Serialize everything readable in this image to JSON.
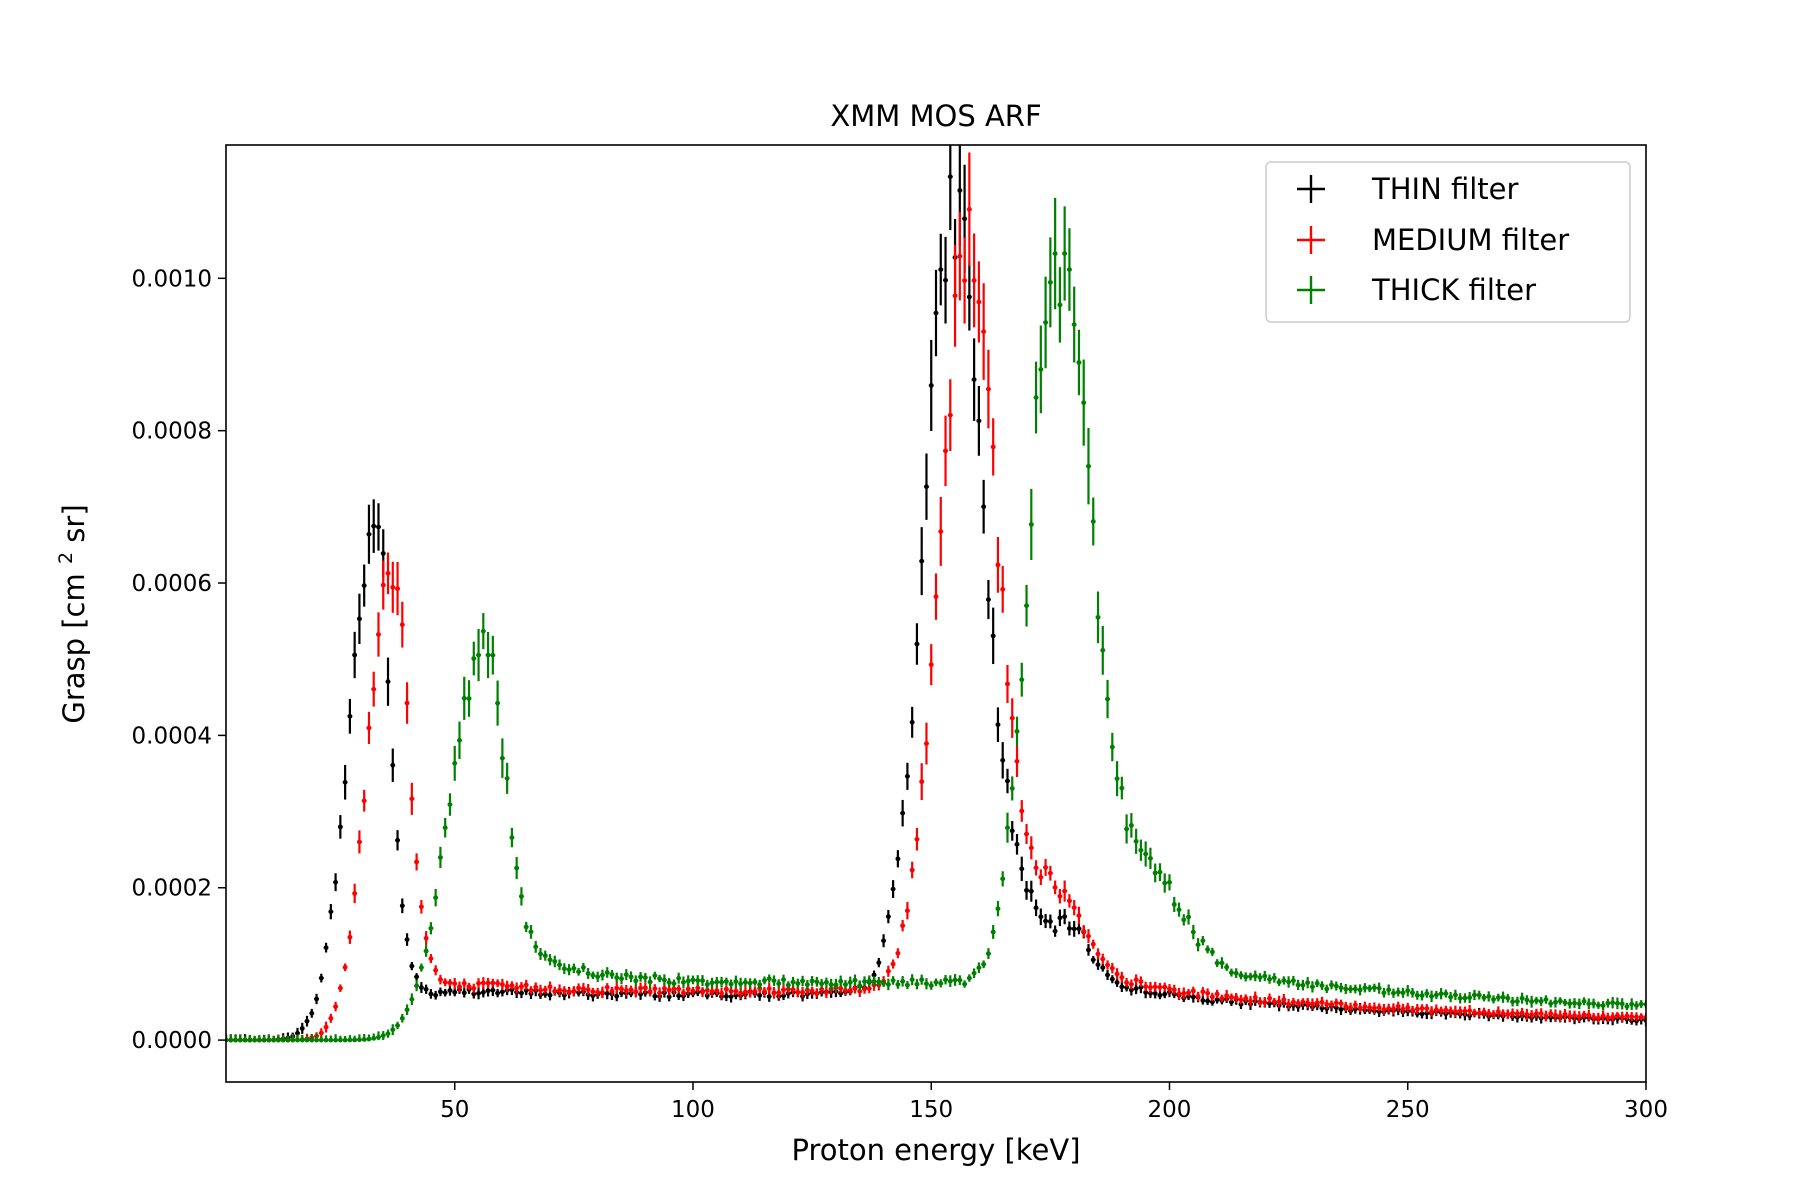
{
  "chart_data": {
    "type": "scatter",
    "title": "XMM MOS ARF",
    "xlabel": "Proton energy [keV]",
    "ylabel_parts": {
      "prefix": "Grasp [cm",
      "sup": "2",
      "suffix": " sr]"
    },
    "xlim": [
      2,
      300
    ],
    "ylim": [
      -5.5e-05,
      0.001175
    ],
    "x_ticks": [
      50,
      100,
      150,
      200,
      250,
      300
    ],
    "x_tick_labels": [
      "50",
      "100",
      "150",
      "200",
      "250",
      "300"
    ],
    "y_ticks": [
      0.0,
      0.0002,
      0.0004,
      0.0006,
      0.0008,
      0.001
    ],
    "y_tick_labels": [
      "0.0000",
      "0.0002",
      "0.0004",
      "0.0006",
      "0.0008",
      "0.0010"
    ],
    "grid": false,
    "legend_position": "top-right",
    "x_step": 1,
    "noise_seed": 7,
    "series": [
      {
        "name": "THIN filter",
        "color": "#000000",
        "description": "two peaks near 34 keV and 155 keV",
        "baseline": {
          "amp": 6e-05,
          "onset": 45,
          "decay_start": 170,
          "decay_rate": 0.0065
        },
        "peaks": [
          {
            "center": 33.5,
            "amp": 0.00068,
            "sigma_left": 5.6,
            "tail_right": 3.6,
            "tail_power": 2.6
          },
          {
            "center": 155,
            "amp": 0.00103,
            "sigma_left": 6.4,
            "tail_right": 7.2,
            "tail_power": 2.5
          }
        ],
        "bumps": [
          {
            "center": 180,
            "amp": 5e-05,
            "width": 3.5
          }
        ],
        "err_frac": 0.055,
        "err_min": 6e-06
      },
      {
        "name": "MEDIUM filter",
        "color": "#ff0000",
        "description": "two peaks near 37 keV and 158 keV",
        "baseline": {
          "amp": 6.5e-05,
          "onset": 48,
          "decay_start": 174,
          "decay_rate": 0.0065
        },
        "peaks": [
          {
            "center": 37,
            "amp": 0.00063,
            "sigma_left": 5.2,
            "tail_right": 4.0,
            "tail_power": 2.6
          },
          {
            "center": 158,
            "amp": 0.00099,
            "sigma_left": 6.2,
            "tail_right": 7.0,
            "tail_power": 2.5
          }
        ],
        "bumps": [
          {
            "center": 178,
            "amp": 6e-05,
            "width": 4.5
          }
        ],
        "err_frac": 0.055,
        "err_min": 6e-06
      },
      {
        "name": "THICK filter",
        "color": "#008000",
        "description": "two peaks near 56 keV and 176 keV",
        "baseline": {
          "amp": 7.5e-05,
          "onset": 68,
          "decay_start": 205,
          "decay_rate": 0.0055
        },
        "peaks": [
          {
            "center": 56,
            "amp": 0.00052,
            "sigma_left": 7.0,
            "tail_right": 6.0,
            "tail_power": 2.6
          },
          {
            "center": 176,
            "amp": 0.00093,
            "sigma_left": 5.6,
            "tail_right": 9.5,
            "tail_power": 2.8
          }
        ],
        "bumps": [
          {
            "center": 199,
            "amp": 6e-05,
            "width": 5.0
          }
        ],
        "err_frac": 0.055,
        "err_min": 6e-06
      }
    ]
  }
}
